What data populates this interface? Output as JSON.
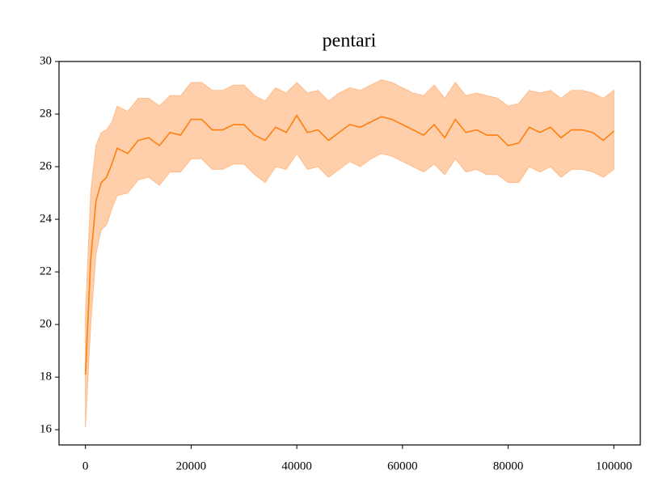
{
  "chart_data": {
    "type": "line",
    "title": "pentari",
    "color": "#ff7f0e",
    "band_color": "#ffbb88",
    "x": [
      0,
      1000,
      2000,
      3000,
      4000,
      5000,
      6000,
      8000,
      10000,
      12000,
      14000,
      16000,
      18000,
      20000,
      22000,
      24000,
      26000,
      28000,
      30000,
      32000,
      34000,
      36000,
      38000,
      40000,
      42000,
      44000,
      46000,
      48000,
      50000,
      52000,
      54000,
      56000,
      58000,
      60000,
      62000,
      64000,
      66000,
      68000,
      70000,
      72000,
      74000,
      76000,
      78000,
      80000,
      82000,
      84000,
      86000,
      88000,
      90000,
      92000,
      94000,
      96000,
      98000,
      100000
    ],
    "values": [
      18.1,
      22.5,
      24.7,
      25.4,
      25.6,
      26.1,
      26.7,
      26.5,
      27.0,
      27.1,
      26.8,
      27.3,
      27.2,
      27.8,
      27.8,
      27.4,
      27.4,
      27.6,
      27.6,
      27.2,
      27.0,
      27.5,
      27.3,
      27.95,
      27.3,
      27.4,
      27.0,
      27.3,
      27.6,
      27.5,
      27.7,
      27.9,
      27.8,
      27.6,
      27.4,
      27.2,
      27.6,
      27.1,
      27.8,
      27.3,
      27.4,
      27.2,
      27.2,
      26.8,
      26.9,
      27.5,
      27.3,
      27.5,
      27.1,
      27.4,
      27.4,
      27.3,
      27.0,
      27.35
    ],
    "lower": [
      16.1,
      20.0,
      22.7,
      23.6,
      23.8,
      24.4,
      24.9,
      25.0,
      25.5,
      25.6,
      25.3,
      25.8,
      25.8,
      26.3,
      26.3,
      25.9,
      25.9,
      26.1,
      26.1,
      25.7,
      25.4,
      26.0,
      25.9,
      26.5,
      25.9,
      26.0,
      25.6,
      25.9,
      26.2,
      26.0,
      26.3,
      26.5,
      26.4,
      26.2,
      26.0,
      25.8,
      26.1,
      25.7,
      26.3,
      25.8,
      25.9,
      25.7,
      25.7,
      25.4,
      25.4,
      26.0,
      25.8,
      26.0,
      25.6,
      25.9,
      25.9,
      25.8,
      25.6,
      25.9
    ],
    "upper": [
      20.4,
      25.0,
      26.8,
      27.3,
      27.4,
      27.7,
      28.3,
      28.1,
      28.6,
      28.6,
      28.3,
      28.7,
      28.7,
      29.2,
      29.2,
      28.9,
      28.9,
      29.1,
      29.1,
      28.7,
      28.5,
      29.0,
      28.8,
      29.2,
      28.8,
      28.9,
      28.5,
      28.8,
      29.0,
      28.9,
      29.1,
      29.3,
      29.2,
      29.0,
      28.8,
      28.7,
      29.1,
      28.6,
      29.2,
      28.7,
      28.8,
      28.7,
      28.6,
      28.3,
      28.4,
      28.9,
      28.8,
      28.9,
      28.6,
      28.9,
      28.9,
      28.8,
      28.6,
      28.9
    ],
    "xlim": [
      -5000,
      105000
    ],
    "ylim": [
      15.42,
      30
    ],
    "xticks": [
      0,
      20000,
      40000,
      60000,
      80000,
      100000
    ],
    "yticks": [
      16,
      18,
      20,
      22,
      24,
      26,
      28,
      30
    ]
  }
}
